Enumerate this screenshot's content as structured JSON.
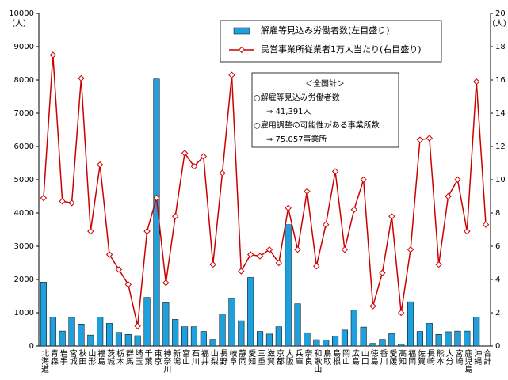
{
  "chart_data": {
    "type": "bar_line",
    "categories": [
      "北海道",
      "青森",
      "岩手",
      "宮城",
      "秋田",
      "山形",
      "福島",
      "茨城",
      "栃木",
      "群馬",
      "埼玉",
      "千葉",
      "東京",
      "神奈川",
      "新潟",
      "富山",
      "石川",
      "福井",
      "山梨",
      "長野",
      "岐阜",
      "静岡",
      "愛知",
      "三重",
      "滋賀",
      "京都",
      "大阪",
      "兵庫",
      "奈良",
      "和歌山",
      "鳥取",
      "島根",
      "岡山",
      "広島",
      "山口",
      "徳島",
      "香川",
      "愛媛",
      "高知",
      "福岡",
      "佐賀",
      "長崎",
      "熊本",
      "大分",
      "宮崎",
      "鹿児島",
      "沖縄",
      "合計"
    ],
    "series": [
      {
        "name": "解雇等見込み労働者数(左目盛り)",
        "type": "bar",
        "color": "#1f9fdc",
        "values": [
          1920,
          870,
          450,
          860,
          660,
          330,
          870,
          680,
          410,
          350,
          310,
          1460,
          8030,
          1300,
          800,
          580,
          580,
          440,
          200,
          960,
          1430,
          760,
          2060,
          440,
          360,
          580,
          3650,
          1270,
          400,
          190,
          180,
          300,
          480,
          1080,
          570,
          80,
          200,
          370,
          60,
          1330,
          440,
          680,
          350,
          430,
          450,
          450,
          870,
          null
        ]
      },
      {
        "name": "民営事業所従業者1万人当たり(右目盛り)",
        "type": "line",
        "axis": "y2",
        "color": "#cc0000",
        "values": [
          8.9,
          17.5,
          8.7,
          8.6,
          16.1,
          6.9,
          10.9,
          5.5,
          4.6,
          3.7,
          1.2,
          6.9,
          8.9,
          3.8,
          7.8,
          11.6,
          10.8,
          11.4,
          4.9,
          10.4,
          16.3,
          4.5,
          5.5,
          5.4,
          5.8,
          5.0,
          8.3,
          5.8,
          9.3,
          4.8,
          7.3,
          10.5,
          5.8,
          8.2,
          10.0,
          2.4,
          4.4,
          7.8,
          2.0,
          5.8,
          12.4,
          12.5,
          4.9,
          9.0,
          10.0,
          6.9,
          15.9,
          7.3
        ]
      }
    ],
    "ylim": [
      0,
      10000
    ],
    "yticks": [
      0,
      1000,
      2000,
      3000,
      4000,
      5000,
      6000,
      7000,
      8000,
      9000,
      10000
    ],
    "y2lim": [
      0,
      20
    ],
    "y2ticks": [
      0,
      2,
      4,
      6,
      8,
      10,
      12,
      14,
      16,
      18,
      20
    ],
    "y_unit": "（人）",
    "y2_unit": "（人）",
    "annotation": [
      "＜全国計＞",
      "○解雇等見込み労働者数",
      "⇒  41,391人",
      "○雇用調整の可能性がある事業所数",
      "⇒  75,057事業所"
    ]
  }
}
